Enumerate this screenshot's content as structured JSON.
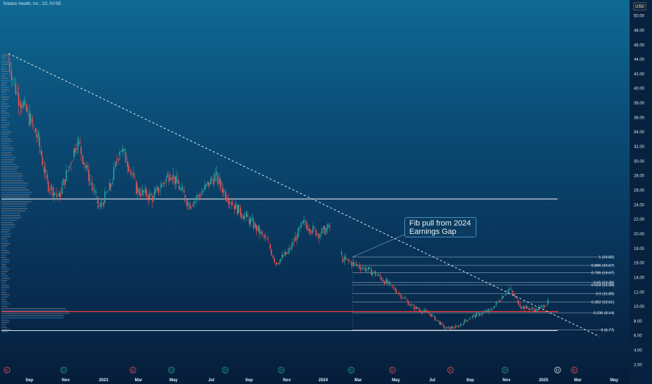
{
  "header": {
    "symbol": "Teladoc Health, Inc., 1D, NYSE",
    "currency": "USD"
  },
  "annotation": {
    "text": "Fib pull from 2024 Earnings Gap"
  },
  "chart_data": {
    "type": "candlestick",
    "x_axis_labels": [
      "Sep",
      "Nov",
      "2023",
      "Mar",
      "May",
      "Jul",
      "Sep",
      "Nov",
      "2024",
      "Mar",
      "May",
      "Jul",
      "Sep",
      "Nov",
      "2025",
      "Mar",
      "May"
    ],
    "y_ticks": [
      "50.00",
      "48.00",
      "46.00",
      "44.00",
      "42.00",
      "40.00",
      "38.00",
      "36.00",
      "34.00",
      "32.00",
      "30.00",
      "28.00",
      "26.00",
      "24.00",
      "22.00",
      "20.00",
      "18.00",
      "16.00",
      "14.00",
      "12.00",
      "10.00",
      "8.00",
      "6.00",
      "4.00",
      "2.00"
    ],
    "ylim": [
      0.5,
      51.5
    ],
    "price_path": [
      [
        "2022-08-01",
        44.0
      ],
      [
        "2022-08-15",
        39.5
      ],
      [
        "2022-09-05",
        36.0
      ],
      [
        "2022-09-20",
        33.0
      ],
      [
        "2022-10-05",
        27.0
      ],
      [
        "2022-10-25",
        25.0
      ],
      [
        "2022-11-10",
        29.0
      ],
      [
        "2022-11-25",
        33.0
      ],
      [
        "2022-12-10",
        29.0
      ],
      [
        "2023-01-01",
        23.5
      ],
      [
        "2023-01-20",
        26.5
      ],
      [
        "2023-02-05",
        32.0
      ],
      [
        "2023-02-20",
        29.5
      ],
      [
        "2023-03-05",
        26.0
      ],
      [
        "2023-04-01",
        25.0
      ],
      [
        "2023-05-01",
        28.5
      ],
      [
        "2023-06-01",
        24.0
      ],
      [
        "2023-06-20",
        25.5
      ],
      [
        "2023-07-15",
        28.0
      ],
      [
        "2023-08-01",
        25.5
      ],
      [
        "2023-08-20",
        23.5
      ],
      [
        "2023-09-15",
        21.5
      ],
      [
        "2023-10-10",
        19.0
      ],
      [
        "2023-10-25",
        16.0
      ],
      [
        "2023-11-15",
        17.5
      ],
      [
        "2023-12-10",
        21.5
      ],
      [
        "2024-01-05",
        20.0
      ],
      [
        "2024-01-25",
        21.0
      ],
      [
        "2024-02-15",
        16.5
      ],
      [
        "2024-03-15",
        15.5
      ],
      [
        "2024-04-10",
        14.5
      ],
      [
        "2024-05-10",
        12.5
      ],
      [
        "2024-06-10",
        10.0
      ],
      [
        "2024-07-10",
        9.0
      ],
      [
        "2024-08-05",
        7.0
      ],
      [
        "2024-08-25",
        7.2
      ],
      [
        "2024-09-15",
        8.5
      ],
      [
        "2024-10-20",
        9.5
      ],
      [
        "2024-11-20",
        12.5
      ],
      [
        "2024-12-10",
        10.0
      ],
      [
        "2025-01-05",
        9.5
      ],
      [
        "2025-01-25",
        10.6
      ]
    ],
    "fib_levels": [
      {
        "ratio": "1",
        "value": "16.82"
      },
      {
        "ratio": "0.886",
        "value": "15.67"
      },
      {
        "ratio": "0.786",
        "value": "14.67"
      },
      {
        "ratio": "0.65",
        "value": "13.30"
      },
      {
        "ratio": "0.618",
        "value": "12.98"
      },
      {
        "ratio": "0.5",
        "value": "11.80"
      },
      {
        "ratio": "0.382",
        "value": "10.61"
      },
      {
        "ratio": "0.236",
        "value": "9.14"
      },
      {
        "ratio": "0",
        "value": "6.77"
      }
    ],
    "horizontal_lines": [
      {
        "price": 24.8,
        "color": "#ffffff"
      },
      {
        "price": 9.3,
        "color": "#ff3b3b"
      },
      {
        "price": 6.7,
        "color": "#ffffff"
      }
    ],
    "trendline": {
      "from": [
        "2022-08-01",
        44.8
      ],
      "to": [
        "2025-04-20",
        5.9
      ],
      "style": "dashed"
    },
    "event_markers": [
      "E",
      "D",
      "E",
      "D",
      "D",
      "D",
      "D",
      "E",
      "E",
      "D",
      "D",
      "E"
    ]
  }
}
